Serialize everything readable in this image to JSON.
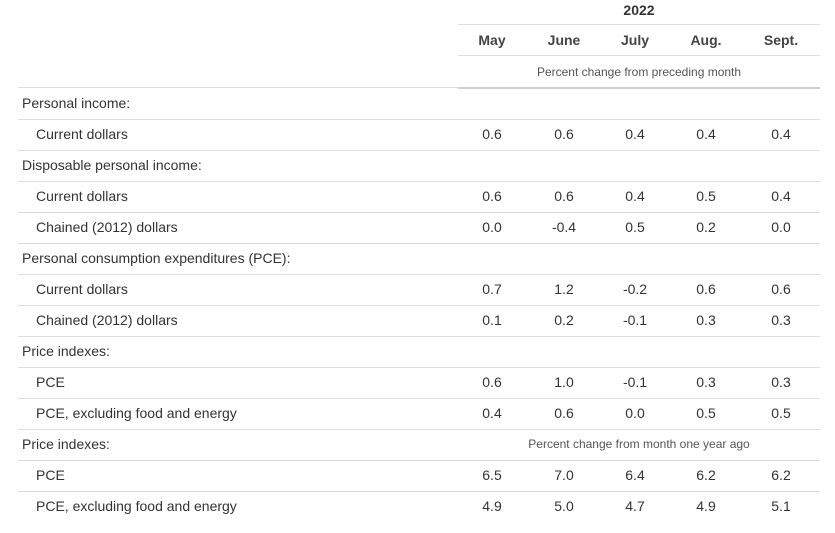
{
  "header": {
    "year": "2022",
    "months": [
      "May",
      "June",
      "July",
      "Aug.",
      "Sept."
    ],
    "note_monthly": "Percent change from preceding month",
    "note_yearly": "Percent change from month one year ago"
  },
  "rows": [
    {
      "label": "Personal income:",
      "type": "section",
      "values": []
    },
    {
      "label": "Current dollars",
      "type": "sub",
      "values": [
        "0.6",
        "0.6",
        "0.4",
        "0.4",
        "0.4"
      ]
    },
    {
      "label": "Disposable personal income:",
      "type": "section",
      "values": []
    },
    {
      "label": "Current dollars",
      "type": "sub",
      "values": [
        "0.6",
        "0.6",
        "0.4",
        "0.5",
        "0.4"
      ]
    },
    {
      "label": "Chained (2012) dollars",
      "type": "sub",
      "values": [
        "0.0",
        "-0.4",
        "0.5",
        "0.2",
        "0.0"
      ]
    },
    {
      "label": "Personal consumption expenditures (PCE):",
      "type": "section",
      "values": []
    },
    {
      "label": "Current dollars",
      "type": "sub",
      "values": [
        "0.7",
        "1.2",
        "-0.2",
        "0.6",
        "0.6"
      ]
    },
    {
      "label": "Chained (2012) dollars",
      "type": "sub",
      "values": [
        "0.1",
        "0.2",
        "-0.1",
        "0.3",
        "0.3"
      ]
    },
    {
      "label": "Price indexes:",
      "type": "section",
      "values": []
    },
    {
      "label": "PCE",
      "type": "sub",
      "values": [
        "0.6",
        "1.0",
        "-0.1",
        "0.3",
        "0.3"
      ]
    },
    {
      "label": "PCE, excluding food and energy",
      "type": "sub",
      "values": [
        "0.4",
        "0.6",
        "0.0",
        "0.5",
        "0.5"
      ]
    },
    {
      "label": "Price indexes:",
      "type": "section",
      "values": []
    },
    {
      "label": "PCE",
      "type": "sub",
      "values": [
        "6.5",
        "7.0",
        "6.4",
        "6.2",
        "6.2"
      ]
    },
    {
      "label": "PCE, excluding food and energy",
      "type": "sub",
      "values": [
        "4.9",
        "5.0",
        "4.7",
        "4.9",
        "5.1"
      ]
    }
  ]
}
